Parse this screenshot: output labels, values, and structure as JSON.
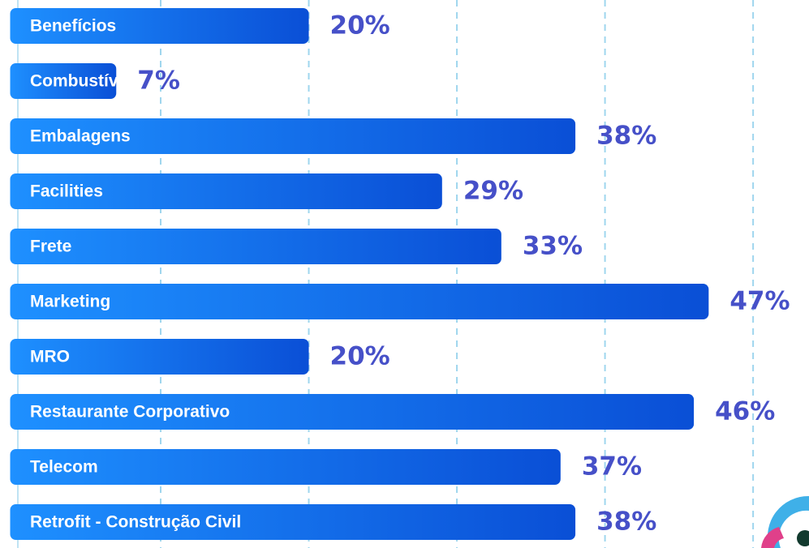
{
  "chart_data": {
    "type": "bar",
    "orientation": "horizontal",
    "categories": [
      "Benefícios",
      "Combustível",
      "Embalagens",
      "Facilities",
      "Frete",
      "Marketing",
      "MRO",
      "Restaurante Corporativo",
      "Telecom",
      "Retrofit - Construção Civil"
    ],
    "values": [
      20,
      7,
      38,
      29,
      33,
      47,
      20,
      46,
      37,
      38
    ],
    "value_labels": [
      "20%",
      "7%",
      "38%",
      "29%",
      "33%",
      "47%",
      "20%",
      "46%",
      "37%",
      "38%"
    ],
    "color": "#0d6bf0",
    "xlim": [
      0,
      53.5
    ],
    "xticks": [
      10,
      20,
      30,
      40,
      50
    ],
    "grid": true
  }
}
